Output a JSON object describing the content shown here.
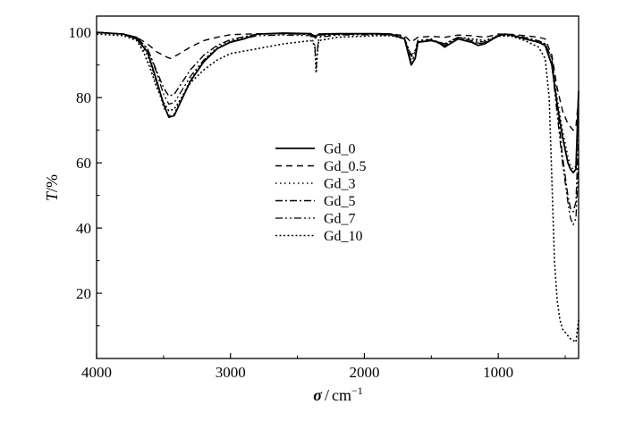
{
  "chart_data": {
    "type": "line",
    "xlabel_symbol": "σ",
    "xlabel_unit": "cm",
    "xlabel_exp": "−1",
    "ylabel_symbol": "T",
    "ylabel_unit": "%",
    "xlim": [
      4000,
      400
    ],
    "ylim": [
      0,
      105
    ],
    "x_reversed": true,
    "xticks": [
      4000,
      3000,
      2000,
      1000
    ],
    "yticks": [
      20,
      40,
      60,
      80,
      100
    ],
    "grid": false,
    "legend_position": "center",
    "series": [
      {
        "name": "Gd_0",
        "dash": "",
        "width": 1.8,
        "points": [
          [
            4000,
            100
          ],
          [
            3800,
            99.5
          ],
          [
            3700,
            98
          ],
          [
            3620,
            94
          ],
          [
            3550,
            85
          ],
          [
            3500,
            78
          ],
          [
            3460,
            74
          ],
          [
            3420,
            74.5
          ],
          [
            3380,
            78
          ],
          [
            3300,
            85
          ],
          [
            3200,
            91
          ],
          [
            3100,
            95
          ],
          [
            3000,
            97
          ],
          [
            2900,
            98
          ],
          [
            2800,
            99.5
          ],
          [
            2600,
            99.8
          ],
          [
            2400,
            99.6
          ],
          [
            2370,
            98.5
          ],
          [
            2340,
            99.5
          ],
          [
            2200,
            99.6
          ],
          [
            1900,
            99.6
          ],
          [
            1800,
            99.5
          ],
          [
            1700,
            98
          ],
          [
            1650,
            90
          ],
          [
            1620,
            92
          ],
          [
            1600,
            97
          ],
          [
            1500,
            97.5
          ],
          [
            1450,
            97
          ],
          [
            1400,
            95.5
          ],
          [
            1380,
            96
          ],
          [
            1300,
            98
          ],
          [
            1200,
            97
          ],
          [
            1150,
            96
          ],
          [
            1100,
            96.5
          ],
          [
            1000,
            99
          ],
          [
            950,
            99.5
          ],
          [
            900,
            99.2
          ],
          [
            800,
            98
          ],
          [
            700,
            97
          ],
          [
            650,
            96
          ],
          [
            600,
            90
          ],
          [
            560,
            78
          ],
          [
            520,
            68
          ],
          [
            480,
            60
          ],
          [
            460,
            58
          ],
          [
            440,
            57
          ],
          [
            420,
            58
          ],
          [
            400,
            82
          ]
        ]
      },
      {
        "name": "Gd_0.5",
        "dash": "7,5",
        "width": 1.4,
        "points": [
          [
            4000,
            100
          ],
          [
            3800,
            99.5
          ],
          [
            3700,
            98.5
          ],
          [
            3620,
            96.5
          ],
          [
            3550,
            94
          ],
          [
            3480,
            92.5
          ],
          [
            3450,
            92
          ],
          [
            3400,
            93
          ],
          [
            3300,
            95.5
          ],
          [
            3200,
            97.5
          ],
          [
            3100,
            98.5
          ],
          [
            3000,
            99.3
          ],
          [
            2800,
            99.6
          ],
          [
            2600,
            99.6
          ],
          [
            2400,
            99.5
          ],
          [
            2370,
            99
          ],
          [
            2340,
            99.5
          ],
          [
            2000,
            99.6
          ],
          [
            1800,
            99.5
          ],
          [
            1700,
            99
          ],
          [
            1650,
            97
          ],
          [
            1600,
            98.5
          ],
          [
            1500,
            98.8
          ],
          [
            1400,
            98.5
          ],
          [
            1300,
            99.2
          ],
          [
            1200,
            99
          ],
          [
            1100,
            98.5
          ],
          [
            1000,
            99.5
          ],
          [
            900,
            99.4
          ],
          [
            800,
            99
          ],
          [
            700,
            98.5
          ],
          [
            650,
            98
          ],
          [
            600,
            93
          ],
          [
            560,
            83
          ],
          [
            520,
            76
          ],
          [
            480,
            72
          ],
          [
            440,
            70
          ],
          [
            420,
            71
          ],
          [
            400,
            80
          ]
        ]
      },
      {
        "name": "Gd_3",
        "dash": "1.5,3.5",
        "width": 1.5,
        "points": [
          [
            4000,
            100
          ],
          [
            3800,
            99.5
          ],
          [
            3700,
            98
          ],
          [
            3620,
            93
          ],
          [
            3550,
            84
          ],
          [
            3500,
            77
          ],
          [
            3460,
            74.5
          ],
          [
            3420,
            75
          ],
          [
            3380,
            78.5
          ],
          [
            3300,
            85.5
          ],
          [
            3200,
            91.5
          ],
          [
            3100,
            95.5
          ],
          [
            3000,
            97.5
          ],
          [
            2800,
            99.5
          ],
          [
            2600,
            99.8
          ],
          [
            2400,
            99.6
          ],
          [
            2370,
            98.5
          ],
          [
            2200,
            99.6
          ],
          [
            1900,
            99.6
          ],
          [
            1800,
            99.5
          ],
          [
            1700,
            98.5
          ],
          [
            1650,
            91.5
          ],
          [
            1620,
            93
          ],
          [
            1600,
            97.5
          ],
          [
            1500,
            98
          ],
          [
            1400,
            96
          ],
          [
            1300,
            98.5
          ],
          [
            1200,
            97.5
          ],
          [
            1150,
            96.5
          ],
          [
            1100,
            97
          ],
          [
            1000,
            99.2
          ],
          [
            900,
            99.3
          ],
          [
            800,
            98.5
          ],
          [
            700,
            97.5
          ],
          [
            650,
            96.5
          ],
          [
            600,
            92
          ],
          [
            560,
            80
          ],
          [
            520,
            70
          ],
          [
            480,
            62
          ],
          [
            460,
            59
          ],
          [
            440,
            58
          ],
          [
            420,
            59
          ],
          [
            400,
            76
          ]
        ]
      },
      {
        "name": "Gd_5",
        "dash": "8,3,2,3",
        "width": 1.4,
        "points": [
          [
            4000,
            100
          ],
          [
            3800,
            99.5
          ],
          [
            3700,
            98.5
          ],
          [
            3620,
            95
          ],
          [
            3550,
            88
          ],
          [
            3500,
            83
          ],
          [
            3460,
            80.5
          ],
          [
            3420,
            81
          ],
          [
            3380,
            83.5
          ],
          [
            3300,
            88.5
          ],
          [
            3200,
            93
          ],
          [
            3100,
            96
          ],
          [
            3000,
            97.8
          ],
          [
            2800,
            99.5
          ],
          [
            2600,
            99.6
          ],
          [
            2400,
            99.4
          ],
          [
            2370,
            98
          ],
          [
            2340,
            99.2
          ],
          [
            2200,
            99.4
          ],
          [
            1900,
            99.5
          ],
          [
            1800,
            99.3
          ],
          [
            1700,
            98
          ],
          [
            1650,
            93
          ],
          [
            1620,
            94.5
          ],
          [
            1600,
            97.5
          ],
          [
            1500,
            97.8
          ],
          [
            1400,
            96.5
          ],
          [
            1300,
            98.5
          ],
          [
            1200,
            97.5
          ],
          [
            1100,
            97
          ],
          [
            1000,
            99
          ],
          [
            900,
            99.2
          ],
          [
            800,
            98.4
          ],
          [
            700,
            97.4
          ],
          [
            650,
            96.5
          ],
          [
            600,
            92
          ],
          [
            560,
            78
          ],
          [
            520,
            62
          ],
          [
            480,
            50
          ],
          [
            460,
            46
          ],
          [
            440,
            45
          ],
          [
            420,
            48
          ],
          [
            400,
            68
          ]
        ]
      },
      {
        "name": "Gd_7",
        "dash": "8,3,2,3,2,3",
        "width": 1.3,
        "points": [
          [
            4000,
            100
          ],
          [
            3800,
            99.5
          ],
          [
            3700,
            98.5
          ],
          [
            3620,
            95
          ],
          [
            3550,
            87.5
          ],
          [
            3500,
            81
          ],
          [
            3460,
            78
          ],
          [
            3420,
            78.5
          ],
          [
            3380,
            81
          ],
          [
            3300,
            86.5
          ],
          [
            3200,
            91.5
          ],
          [
            3100,
            95
          ],
          [
            3000,
            97.2
          ],
          [
            2800,
            99
          ],
          [
            2600,
            99.2
          ],
          [
            2400,
            99
          ],
          [
            2370,
            96
          ],
          [
            2360,
            89
          ],
          [
            2350,
            95
          ],
          [
            2340,
            98.5
          ],
          [
            2200,
            99.2
          ],
          [
            1900,
            99.3
          ],
          [
            1800,
            99.2
          ],
          [
            1700,
            98
          ],
          [
            1650,
            91
          ],
          [
            1620,
            93
          ],
          [
            1600,
            97
          ],
          [
            1500,
            97.5
          ],
          [
            1400,
            96
          ],
          [
            1300,
            98
          ],
          [
            1200,
            97
          ],
          [
            1100,
            96.5
          ],
          [
            1000,
            98.8
          ],
          [
            900,
            99
          ],
          [
            800,
            98
          ],
          [
            700,
            97
          ],
          [
            650,
            96
          ],
          [
            600,
            90
          ],
          [
            560,
            75
          ],
          [
            520,
            60
          ],
          [
            480,
            48
          ],
          [
            460,
            43
          ],
          [
            440,
            41
          ],
          [
            420,
            43
          ],
          [
            400,
            60
          ]
        ]
      },
      {
        "name": "Gd_10",
        "dash": "2,2.5",
        "width": 1.6,
        "points": [
          [
            4000,
            99.5
          ],
          [
            3800,
            99
          ],
          [
            3700,
            97.5
          ],
          [
            3650,
            94
          ],
          [
            3600,
            89
          ],
          [
            3550,
            83
          ],
          [
            3500,
            78.5
          ],
          [
            3460,
            76
          ],
          [
            3420,
            76.5
          ],
          [
            3380,
            79
          ],
          [
            3300,
            84.5
          ],
          [
            3200,
            88.5
          ],
          [
            3100,
            91.5
          ],
          [
            3000,
            93.5
          ],
          [
            2800,
            95
          ],
          [
            2600,
            96.5
          ],
          [
            2400,
            97.5
          ],
          [
            2370,
            96
          ],
          [
            2360,
            87.5
          ],
          [
            2350,
            94
          ],
          [
            2340,
            97.5
          ],
          [
            2200,
            98.5
          ],
          [
            1900,
            99
          ],
          [
            1800,
            99
          ],
          [
            1700,
            98
          ],
          [
            1650,
            92.5
          ],
          [
            1620,
            94
          ],
          [
            1600,
            97
          ],
          [
            1500,
            97.5
          ],
          [
            1400,
            96.5
          ],
          [
            1300,
            98.5
          ],
          [
            1200,
            98
          ],
          [
            1100,
            97.5
          ],
          [
            1000,
            99
          ],
          [
            900,
            98.8
          ],
          [
            800,
            97.5
          ],
          [
            700,
            95.5
          ],
          [
            650,
            92
          ],
          [
            620,
            80
          ],
          [
            600,
            55
          ],
          [
            580,
            30
          ],
          [
            560,
            18
          ],
          [
            540,
            12
          ],
          [
            520,
            9
          ],
          [
            500,
            8
          ],
          [
            480,
            7
          ],
          [
            460,
            6
          ],
          [
            440,
            5.5
          ],
          [
            420,
            5
          ],
          [
            400,
            12
          ]
        ]
      }
    ]
  }
}
